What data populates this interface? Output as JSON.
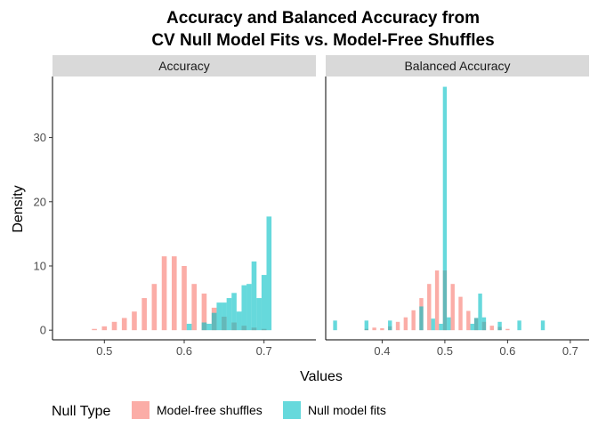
{
  "title_line1": "Accuracy and Balanced Accuracy from",
  "title_line2": "CV Null Model Fits vs. Model-Free Shuffles",
  "legend": {
    "title": "Null Type",
    "items": [
      {
        "label": "Model-free shuffles",
        "color": "#F8766D"
      },
      {
        "label": "Null model fits",
        "color": "#00BFC4"
      }
    ]
  },
  "chart_data": {
    "type": "bar",
    "xlabel": "Values",
    "ylabel": "Density",
    "ylim": [
      -1.5,
      39.5
    ],
    "yticks": [
      0,
      10,
      20,
      30
    ],
    "grid": false,
    "legend_position": "bottom-left",
    "bar_opacity": 0.6,
    "panels": [
      {
        "name": "Accuracy",
        "xlim": [
          0.435,
          0.765
        ],
        "xticks": [
          0.5,
          0.6,
          0.7
        ],
        "binwidth": 0.00625,
        "series": [
          {
            "name": "Model-free shuffles",
            "color": "#F8766D",
            "x": [
              0.4875,
              0.5,
              0.5125,
              0.525,
              0.5375,
              0.55,
              0.5625,
              0.575,
              0.5875,
              0.6,
              0.6125,
              0.625,
              0.6375,
              0.65,
              0.6625,
              0.675,
              0.6875,
              0.7
            ],
            "y": [
              0.2,
              0.6,
              1.3,
              1.9,
              2.9,
              5.0,
              7.2,
              11.5,
              11.5,
              10.0,
              7.2,
              5.7,
              3.5,
              2.1,
              1.2,
              0.7,
              0.4,
              0.2
            ]
          },
          {
            "name": "Null model fits",
            "color": "#00BFC4",
            "x": [
              0.60625,
              0.625,
              0.63125,
              0.6375,
              0.64375,
              0.65,
              0.65625,
              0.6625,
              0.66875,
              0.675,
              0.68125,
              0.6875,
              0.69375,
              0.7,
              0.70625
            ],
            "y": [
              1.0,
              1.2,
              1.0,
              2.7,
              4.3,
              4.3,
              5.0,
              5.8,
              2.9,
              7.0,
              7.2,
              10.7,
              5.0,
              8.6,
              17.7
            ]
          }
        ]
      },
      {
        "name": "Balanced Accuracy",
        "xlim": [
          0.31,
          0.73
        ],
        "xticks": [
          0.4,
          0.5,
          0.6,
          0.7
        ],
        "binwidth": 0.00625,
        "series": [
          {
            "name": "Model-free shuffles",
            "color": "#F8766D",
            "x": [
              0.375,
              0.3875,
              0.4,
              0.4125,
              0.425,
              0.4375,
              0.45,
              0.4625,
              0.475,
              0.4875,
              0.5,
              0.5125,
              0.525,
              0.5375,
              0.55,
              0.5625,
              0.575,
              0.5875,
              0.6
            ],
            "y": [
              0.2,
              0.4,
              0.3,
              0.6,
              1.3,
              2.0,
              3.1,
              5.0,
              7.2,
              9.3,
              9.3,
              7.2,
              5.2,
              3.0,
              1.9,
              1.3,
              0.7,
              0.5,
              0.2
            ]
          },
          {
            "name": "Null model fits",
            "color": "#00BFC4",
            "x": [
              0.325,
              0.375,
              0.4125,
              0.4625,
              0.48125,
              0.49375,
              0.5,
              0.50625,
              0.54375,
              0.55,
              0.55625,
              0.5625,
              0.5875,
              0.61875,
              0.65625
            ],
            "y": [
              1.5,
              1.5,
              1.5,
              3.7,
              1.8,
              1.0,
              37.9,
              2.0,
              1.0,
              1.9,
              5.7,
              2.0,
              1.3,
              1.5,
              1.5
            ]
          }
        ]
      }
    ]
  }
}
